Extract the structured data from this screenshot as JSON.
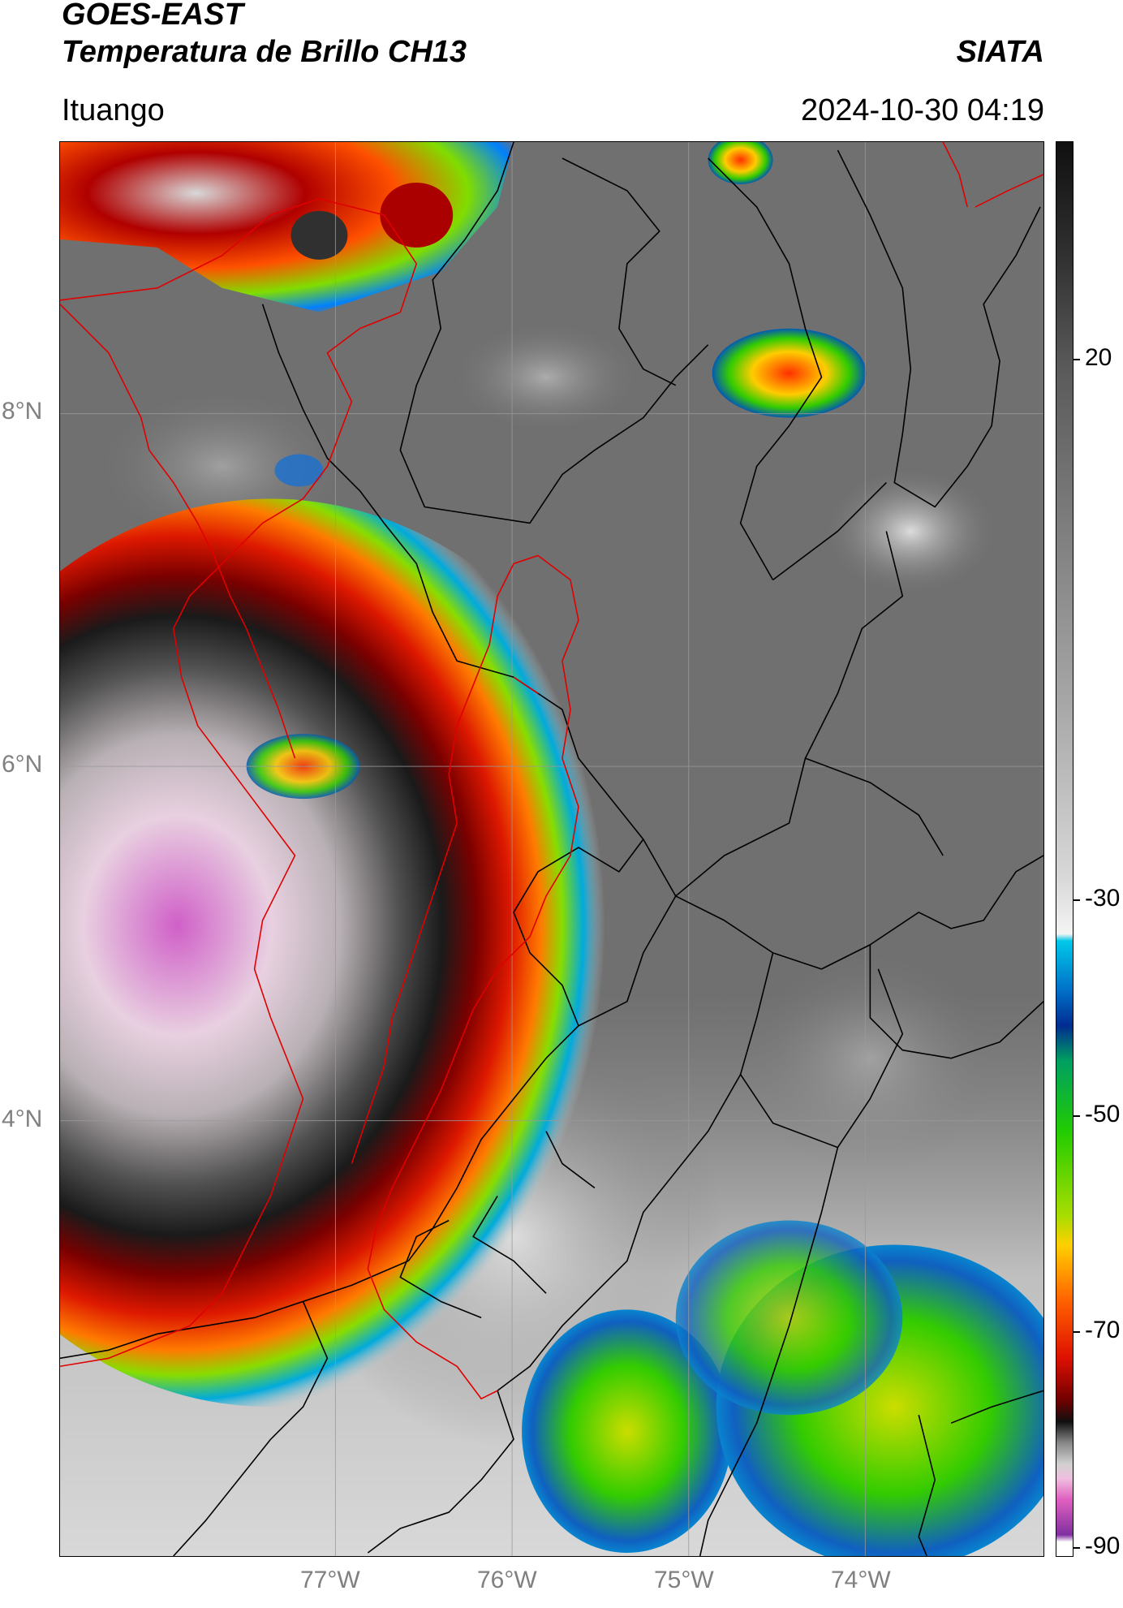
{
  "header": {
    "satellite": "GOES-EAST",
    "product": "Temperatura de Brillo CH13",
    "agency": "SIATA",
    "region": "Ituango",
    "datetime": "2024-10-30 04:19"
  },
  "map": {
    "lat_ticks": [
      "8°N",
      "6°N",
      "4°N"
    ],
    "lon_ticks": [
      "77°W",
      "76°W",
      "75°W",
      "74°W"
    ],
    "cloud_top_colors": {
      "clear_warm": "#6f6f6f",
      "light_gray": "#c8c8c8",
      "cold_red": "#cc0000",
      "cold_green": "#33cc00",
      "very_cold_magenta": "#d060c8"
    },
    "boundary_colors": {
      "admin": "#000000",
      "basin": "#e00000"
    }
  },
  "colorbar": {
    "labels": [
      "20",
      "-30",
      "-50",
      "-70",
      "-90"
    ]
  }
}
